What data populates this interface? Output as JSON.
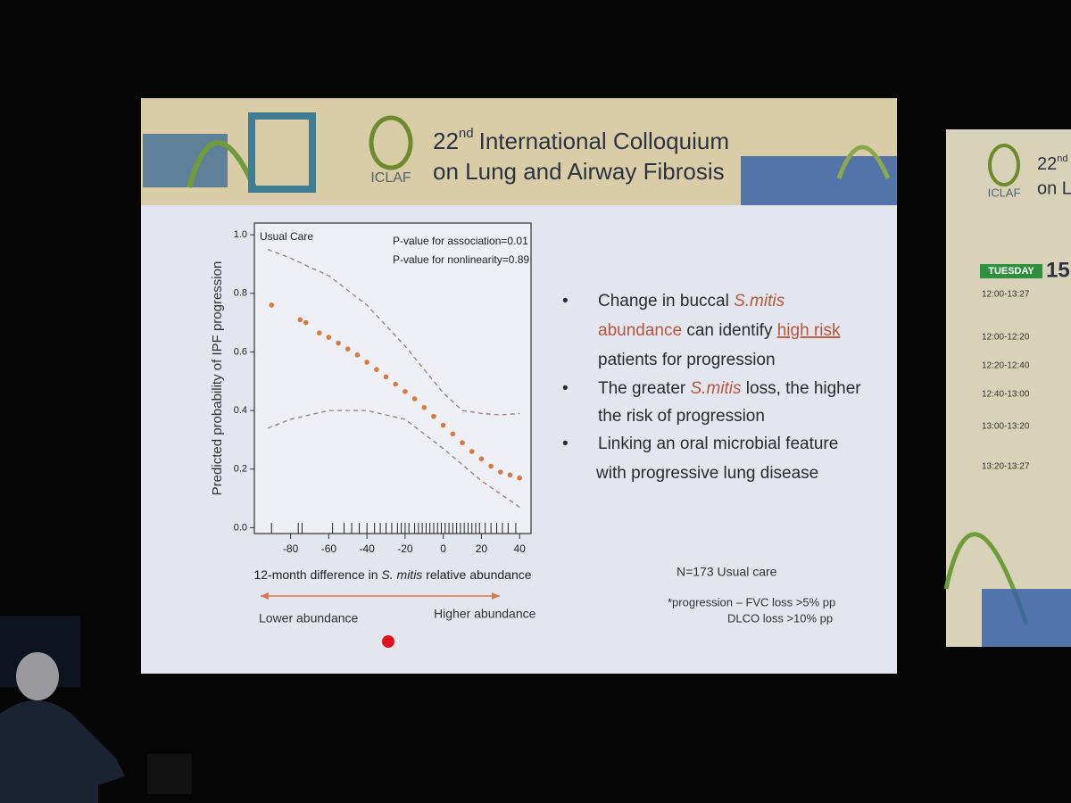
{
  "header": {
    "title_number": "22",
    "title_superscript": "nd",
    "title_line1": "International Colloquium",
    "title_line2": "on Lung and Airway Fibrosis",
    "logo": "ICLAF"
  },
  "chart_data": {
    "type": "scatter",
    "panel_label": "Usual Care",
    "annotations": [
      "P-value for association=0.01",
      "P-value for nonlinearity=0.89"
    ],
    "y_label": "Predicted probability of IPF progression",
    "x_label_parts": [
      "12-month difference in ",
      "S. mitis",
      " relative abundance"
    ],
    "xlim": [
      -99,
      46
    ],
    "xticks": [
      -80,
      -60,
      -40,
      -20,
      0,
      20,
      40
    ],
    "ylim": [
      -0.02,
      1.04
    ],
    "yticks": [
      {
        "value": 0,
        "label": "0.0"
      },
      {
        "value": 0.2,
        "label": "0.2"
      },
      0.4,
      0.6,
      0.8,
      {
        "value": 1,
        "label": "1.0"
      }
    ],
    "series": [
      {
        "name": "Predicted probability",
        "mark": "dots",
        "color": "#d77a45",
        "x": [
          -90,
          -75,
          -72,
          -65,
          -60,
          -55,
          -50,
          -45,
          -40,
          -35,
          -30,
          -25,
          -20,
          -15,
          -10,
          -5,
          0,
          5,
          10,
          15,
          20,
          25,
          30,
          35,
          40
        ],
        "values": [
          0.76,
          0.71,
          0.7,
          0.665,
          0.65,
          0.63,
          0.61,
          0.59,
          0.565,
          0.54,
          0.515,
          0.49,
          0.465,
          0.44,
          0.41,
          0.38,
          0.35,
          0.32,
          0.29,
          0.26,
          0.235,
          0.21,
          0.19,
          0.18,
          0.17
        ]
      },
      {
        "name": "Upper bound",
        "mark": "dashed-line",
        "color": "#9a7f78",
        "x": [
          -92,
          -80,
          -60,
          -40,
          -20,
          0,
          10,
          20,
          30,
          40
        ],
        "values": [
          0.95,
          0.92,
          0.86,
          0.76,
          0.62,
          0.46,
          0.4,
          0.39,
          0.385,
          0.39
        ]
      },
      {
        "name": "Lower bound",
        "mark": "dashed-line",
        "color": "#9a7f78",
        "x": [
          -92,
          -80,
          -60,
          -40,
          -20,
          0,
          20,
          40
        ],
        "values": [
          0.34,
          0.37,
          0.4,
          0.4,
          0.37,
          0.27,
          0.16,
          0.07
        ]
      }
    ],
    "rug_x": [
      -90,
      -76,
      -74,
      -58,
      -52,
      -48,
      -44,
      -40,
      -36,
      -33,
      -30,
      -27,
      -24,
      -22,
      -20,
      -18,
      -15,
      -13,
      -11,
      -9,
      -7,
      -5,
      -3,
      -1,
      1,
      3,
      5,
      7,
      9,
      11,
      13,
      15,
      17,
      19,
      22,
      25,
      28,
      31,
      34,
      38
    ]
  },
  "arrow_labels": [
    "Lower abundance",
    "Higher abundance"
  ],
  "bullets": [
    [
      "Change in buccal ",
      "S.mitis",
      "abundance",
      " can identify ",
      "high risk",
      "patients for progression"
    ],
    [
      "The greater ",
      "S.mitis",
      " loss, the higher",
      "the risk of progression"
    ],
    [
      "Linking an oral microbial feature",
      "with progressive lung disease"
    ]
  ],
  "notes": [
    "N=173 Usual care",
    "*progression – FVC loss >5% pp",
    "DLCO loss >10% pp"
  ],
  "side_screen": {
    "title_number": "22",
    "title_superscript": "nd",
    "title_fragment": "on L",
    "logo": "ICLAF",
    "day": "TUESDAY",
    "date": "15",
    "times": [
      "12:00-13:27",
      "12:00-12:20",
      "12:20-12:40",
      "12:40-13:00",
      "13:00-13:20",
      "13:20-13:27"
    ]
  }
}
